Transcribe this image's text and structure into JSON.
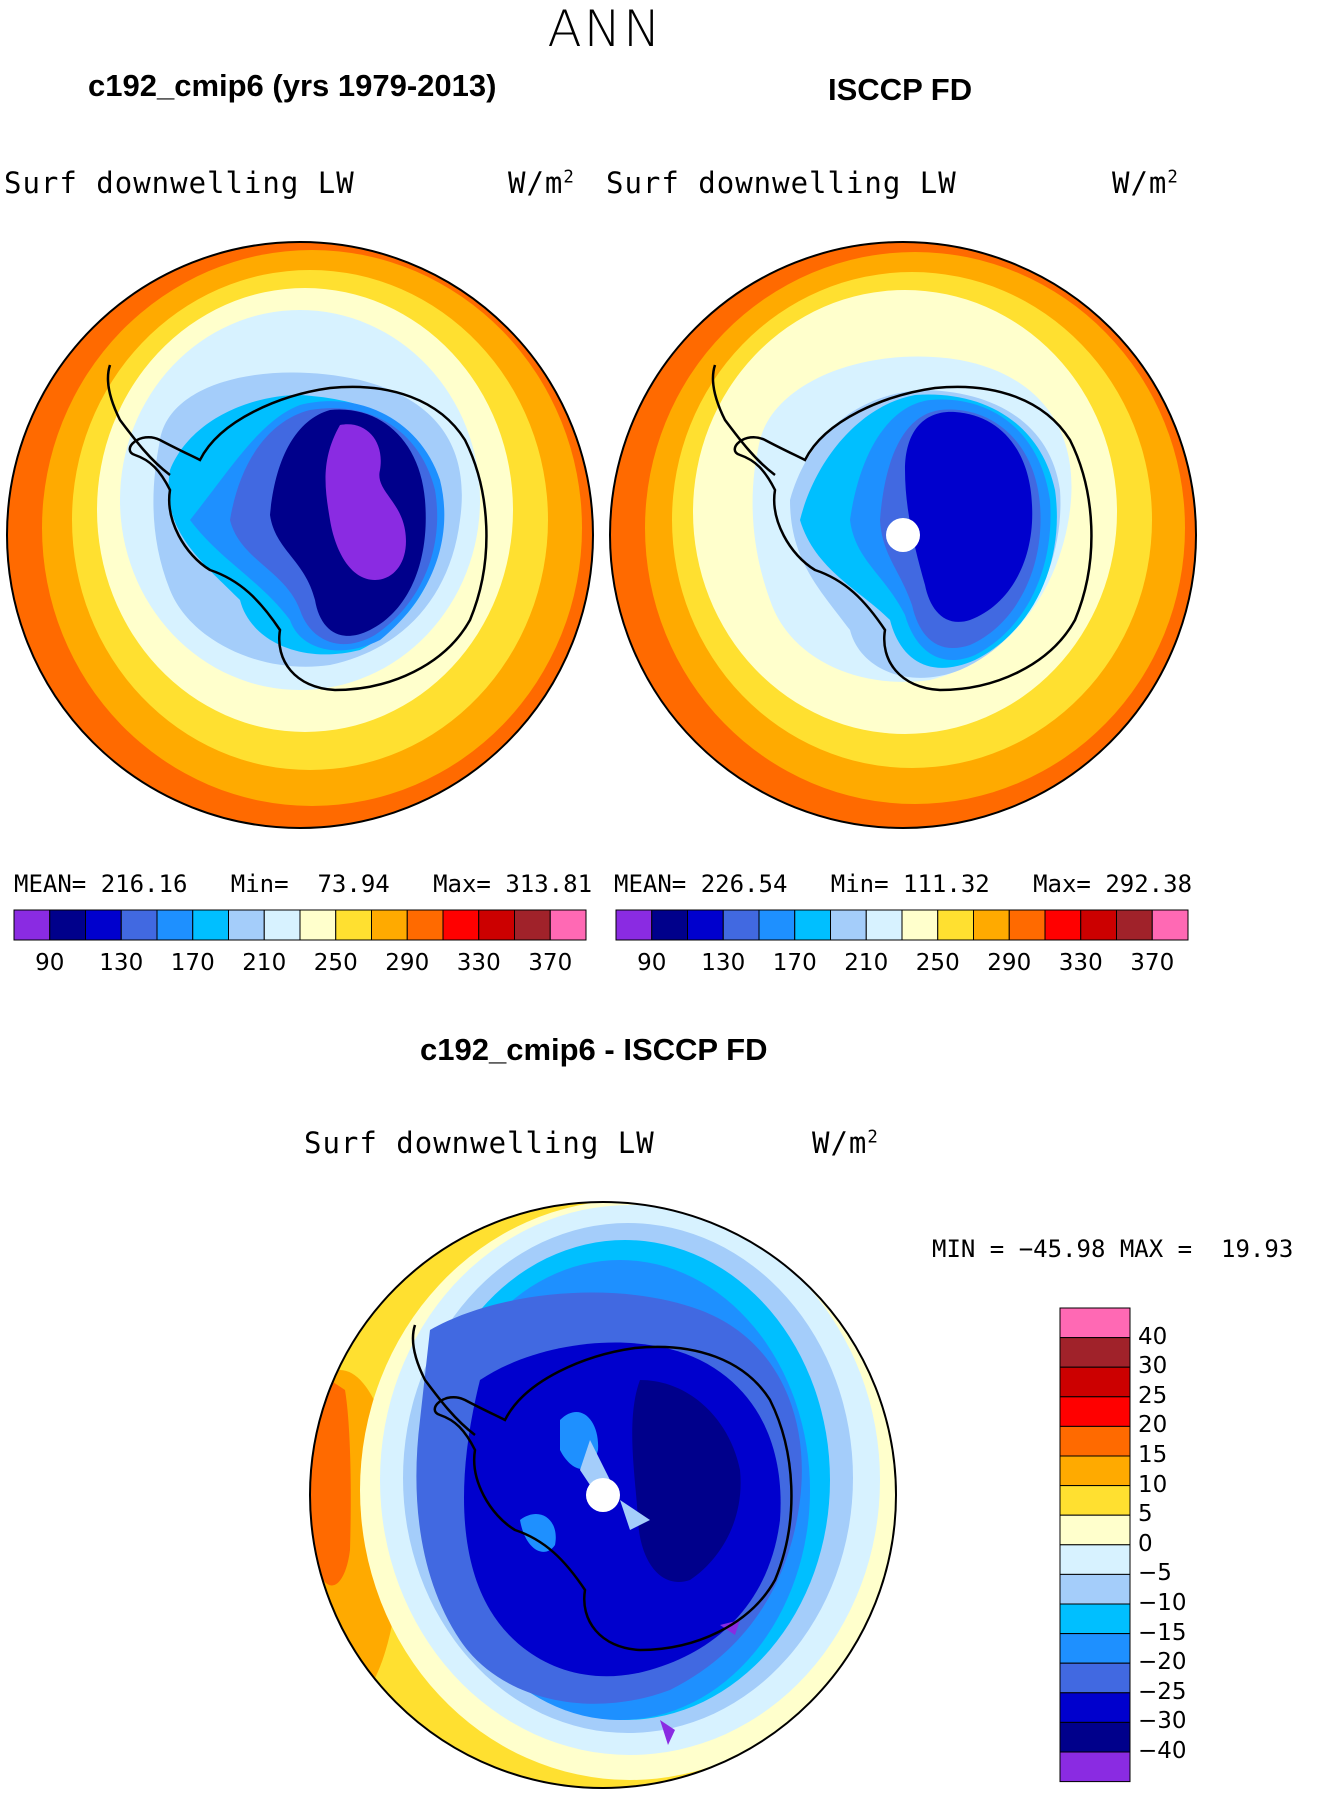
{
  "figure": {
    "title": "ANN",
    "colors": {
      "levels": [
        "#8a2be2",
        "#00008b",
        "#0000cd",
        "#4169e1",
        "#1e90ff",
        "#00bfff",
        "#a4cdfa",
        "#d7f2ff",
        "#ffffcc",
        "#ffe030",
        "#ffaa00",
        "#ff6a00",
        "#ff0000",
        "#cc0000",
        "#a0222a",
        "#ff69b4"
      ],
      "diff_levels": [
        "#8a2be2",
        "#00008b",
        "#0000cd",
        "#4169e1",
        "#1e90ff",
        "#00bfff",
        "#a4cdfa",
        "#d7f2ff",
        "#ffffcc",
        "#ffe030",
        "#ffaa00",
        "#ff6a00",
        "#ff0000",
        "#cc0000",
        "#a0222a",
        "#ff69b4"
      ],
      "land_outline": "#000000",
      "pole_marker": "#ffffff"
    }
  },
  "panels": [
    {
      "title": "c192_cmip6 (yrs 1979-2013)",
      "variable": "Surf downwelling LW",
      "units_base": "W/m",
      "units_exp": "2",
      "stats": {
        "mean_label": "MEAN=",
        "mean": "216.16",
        "min_label": "Min=",
        "min": "73.94",
        "max_label": "Max=",
        "max": "313.81"
      },
      "ticks": [
        "90",
        "130",
        "170",
        "210",
        "250",
        "290",
        "330",
        "370"
      ]
    },
    {
      "title": "ISCCP FD",
      "variable": "Surf downwelling LW",
      "units_base": "W/m",
      "units_exp": "2",
      "stats": {
        "mean_label": "MEAN=",
        "mean": "226.54",
        "min_label": "Min=",
        "min": "111.32",
        "max_label": "Max=",
        "max": "292.38"
      },
      "ticks": [
        "90",
        "130",
        "170",
        "210",
        "250",
        "290",
        "330",
        "370"
      ]
    }
  ],
  "difference": {
    "title": "c192_cmip6 - ISCCP FD",
    "variable": "Surf downwelling LW",
    "units_base": "W/m",
    "units_exp": "2",
    "range": {
      "min_label": "MIN =",
      "min": "−45.98",
      "max_label": "MAX =",
      "max": "19.93"
    },
    "colorbar_labels": [
      "40",
      "30",
      "25",
      "20",
      "15",
      "10",
      "5",
      "0",
      "−5",
      "−10",
      "−15",
      "−20",
      "−25",
      "−30",
      "−40"
    ]
  }
}
